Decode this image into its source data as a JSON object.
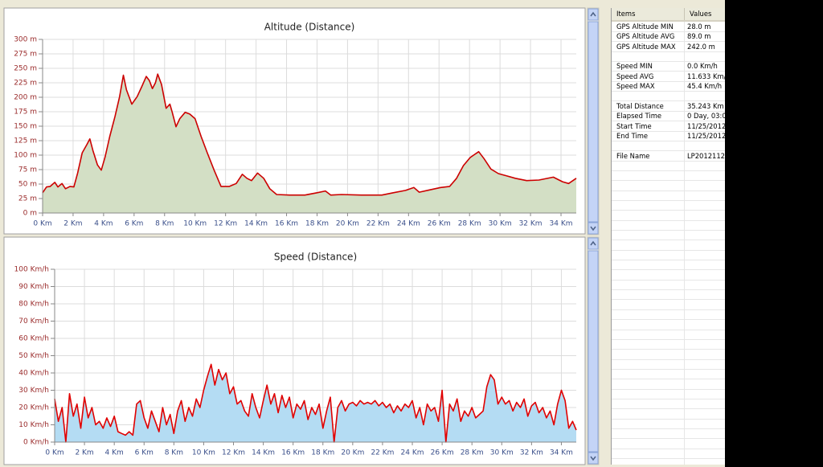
{
  "chart_data": [
    {
      "type": "area",
      "title": "Altitude (Distance)",
      "line_color": "#cc0000",
      "fill_color": "#d3dfc5",
      "grid": true,
      "xlim": [
        0,
        35
      ],
      "ylim": [
        0,
        300
      ],
      "xticks": [
        {
          "value": 0,
          "label": "0 Km"
        },
        {
          "value": 2,
          "label": "2 Km"
        },
        {
          "value": 4,
          "label": "4 Km"
        },
        {
          "value": 6,
          "label": "6 Km"
        },
        {
          "value": 8,
          "label": "8 Km"
        },
        {
          "value": 10,
          "label": "10 Km"
        },
        {
          "value": 12,
          "label": "12 Km"
        },
        {
          "value": 14,
          "label": "14 Km"
        },
        {
          "value": 16,
          "label": "16 Km"
        },
        {
          "value": 18,
          "label": "18 Km"
        },
        {
          "value": 20,
          "label": "20 Km"
        },
        {
          "value": 22,
          "label": "22 Km"
        },
        {
          "value": 24,
          "label": "24 Km"
        },
        {
          "value": 26,
          "label": "26 Km"
        },
        {
          "value": 28,
          "label": "28 Km"
        },
        {
          "value": 30,
          "label": "30 Km"
        },
        {
          "value": 32,
          "label": "32 Km"
        },
        {
          "value": 34,
          "label": "34 Km"
        }
      ],
      "yticks": [
        {
          "value": 0,
          "label": "0 m"
        },
        {
          "value": 25,
          "label": "25 m"
        },
        {
          "value": 50,
          "label": "50 m"
        },
        {
          "value": 75,
          "label": "75 m"
        },
        {
          "value": 100,
          "label": "100 m"
        },
        {
          "value": 125,
          "label": "125 m"
        },
        {
          "value": 150,
          "label": "150 m"
        },
        {
          "value": 175,
          "label": "175 m"
        },
        {
          "value": 200,
          "label": "200 m"
        },
        {
          "value": 225,
          "label": "225 m"
        },
        {
          "value": 250,
          "label": "250 m"
        },
        {
          "value": 275,
          "label": "275 m"
        },
        {
          "value": 300,
          "label": "300 m"
        }
      ],
      "x": [
        0,
        0.26,
        0.5,
        0.8,
        1.0,
        1.27,
        1.5,
        1.8,
        2.05,
        2.3,
        2.6,
        2.9,
        3.1,
        3.3,
        3.6,
        3.85,
        4.1,
        4.4,
        4.75,
        5.05,
        5.3,
        5.5,
        5.85,
        6.2,
        6.5,
        6.8,
        7.0,
        7.2,
        7.4,
        7.55,
        7.8,
        8.1,
        8.35,
        8.5,
        8.75,
        9.0,
        9.35,
        9.65,
        10.0,
        10.4,
        10.8,
        11.25,
        11.7,
        12.25,
        12.7,
        13.1,
        13.4,
        13.7,
        14.1,
        14.5,
        14.9,
        15.35,
        16.2,
        17.2,
        18.0,
        18.55,
        18.9,
        19.6,
        20.9,
        22.25,
        23.0,
        23.8,
        24.35,
        24.7,
        25.4,
        26.1,
        26.7,
        27.15,
        27.6,
        28.05,
        28.6,
        28.95,
        29.4,
        29.9,
        30.45,
        31.0,
        31.75,
        32.55,
        33.5,
        34.1,
        34.5,
        35.0
      ],
      "values": [
        35,
        45,
        46,
        53,
        45,
        51,
        42,
        46,
        45,
        69,
        104,
        118,
        128,
        108,
        83,
        74,
        97,
        132,
        167,
        201,
        238,
        213,
        188,
        201,
        218,
        236,
        229,
        215,
        225,
        240,
        222,
        181,
        188,
        174,
        149,
        163,
        174,
        171,
        163,
        132,
        104,
        74,
        46,
        46,
        51,
        67,
        60,
        56,
        69,
        60,
        42,
        32,
        31,
        31,
        35,
        38,
        31,
        32,
        31,
        31,
        35,
        39,
        44,
        36,
        40,
        44,
        46,
        60,
        82,
        96,
        106,
        94,
        76,
        68,
        64,
        60,
        56,
        57,
        62,
        54,
        51,
        60
      ]
    },
    {
      "type": "area",
      "title": "Speed (Distance)",
      "line_color": "#e00000",
      "fill_color": "#b4dcf3",
      "grid": true,
      "xlim": [
        0,
        35
      ],
      "ylim": [
        0,
        100
      ],
      "xticks": [
        {
          "value": 0,
          "label": "0 Km"
        },
        {
          "value": 2,
          "label": "2 Km"
        },
        {
          "value": 4,
          "label": "4 Km"
        },
        {
          "value": 6,
          "label": "6 Km"
        },
        {
          "value": 8,
          "label": "8 Km"
        },
        {
          "value": 10,
          "label": "10 Km"
        },
        {
          "value": 12,
          "label": "12 Km"
        },
        {
          "value": 14,
          "label": "14 Km"
        },
        {
          "value": 16,
          "label": "16 Km"
        },
        {
          "value": 18,
          "label": "18 Km"
        },
        {
          "value": 20,
          "label": "20 Km"
        },
        {
          "value": 22,
          "label": "22 Km"
        },
        {
          "value": 24,
          "label": "24 Km"
        },
        {
          "value": 26,
          "label": "26 Km"
        },
        {
          "value": 28,
          "label": "28 Km"
        },
        {
          "value": 30,
          "label": "30 Km"
        },
        {
          "value": 32,
          "label": "32 Km"
        },
        {
          "value": 34,
          "label": "34 Km"
        }
      ],
      "yticks": [
        {
          "value": 0,
          "label": "0 Km/h"
        },
        {
          "value": 10,
          "label": "10 Km/h"
        },
        {
          "value": 20,
          "label": "20 Km/h"
        },
        {
          "value": 30,
          "label": "30 Km/h"
        },
        {
          "value": 40,
          "label": "40 Km/h"
        },
        {
          "value": 50,
          "label": "50 Km/h"
        },
        {
          "value": 60,
          "label": "60 Km/h"
        },
        {
          "value": 70,
          "label": "70 Km/h"
        },
        {
          "value": 80,
          "label": "80 Km/h"
        },
        {
          "value": 90,
          "label": "90 Km/h"
        },
        {
          "value": 100,
          "label": "100 Km/h"
        }
      ],
      "x": [
        0,
        0.25,
        0.5,
        0.75,
        1,
        1.25,
        1.5,
        1.75,
        2,
        2.25,
        2.5,
        2.75,
        3,
        3.25,
        3.5,
        3.75,
        4,
        4.25,
        4.5,
        4.75,
        5,
        5.25,
        5.5,
        5.75,
        6,
        6.25,
        6.5,
        6.75,
        7,
        7.25,
        7.5,
        7.75,
        8,
        8.25,
        8.5,
        8.75,
        9,
        9.25,
        9.5,
        9.75,
        10,
        10.25,
        10.5,
        10.75,
        11,
        11.25,
        11.5,
        11.75,
        12,
        12.25,
        12.5,
        12.75,
        13,
        13.25,
        13.5,
        13.75,
        14,
        14.25,
        14.5,
        14.75,
        15,
        15.25,
        15.5,
        15.75,
        16,
        16.25,
        16.5,
        16.75,
        17,
        17.25,
        17.5,
        17.75,
        18,
        18.25,
        18.5,
        18.75,
        19,
        19.25,
        19.5,
        19.75,
        20,
        20.25,
        20.5,
        20.75,
        21,
        21.25,
        21.5,
        21.75,
        22,
        22.25,
        22.5,
        22.75,
        23,
        23.25,
        23.5,
        23.75,
        24,
        24.25,
        24.5,
        24.75,
        25,
        25.25,
        25.5,
        25.75,
        26,
        26.25,
        26.5,
        26.75,
        27,
        27.25,
        27.5,
        27.75,
        28,
        28.25,
        28.5,
        28.75,
        29,
        29.25,
        29.5,
        29.75,
        30,
        30.25,
        30.5,
        30.75,
        31,
        31.25,
        31.5,
        31.75,
        32,
        32.25,
        32.5,
        32.75,
        33,
        33.25,
        33.5,
        33.75,
        34,
        34.25,
        34.5,
        34.75,
        35
      ],
      "values": [
        25,
        12,
        20,
        0,
        28,
        15,
        22,
        8,
        26,
        14,
        20,
        10,
        12,
        8,
        14,
        9,
        15,
        6,
        5,
        4,
        6,
        4,
        22,
        24,
        14,
        8,
        18,
        12,
        6,
        20,
        10,
        16,
        5,
        18,
        24,
        12,
        20,
        15,
        25,
        20,
        30,
        38,
        45,
        33,
        42,
        36,
        40,
        28,
        32,
        22,
        24,
        18,
        15,
        28,
        20,
        14,
        24,
        33,
        22,
        28,
        17,
        27,
        20,
        26,
        14,
        22,
        19,
        24,
        13,
        20,
        16,
        22,
        8,
        18,
        26,
        0,
        20,
        24,
        18,
        22,
        23,
        21,
        24,
        22,
        23,
        22,
        24,
        21,
        23,
        20,
        22,
        17,
        21,
        18,
        22,
        20,
        24,
        14,
        20,
        10,
        22,
        18,
        20,
        12,
        30,
        0,
        22,
        18,
        25,
        12,
        18,
        15,
        20,
        14,
        16,
        18,
        32,
        39,
        36,
        22,
        26,
        22,
        24,
        18,
        23,
        20,
        25,
        15,
        21,
        23,
        17,
        20,
        14,
        18,
        10,
        22,
        30,
        24,
        8,
        12,
        7
      ]
    }
  ],
  "table": {
    "header": [
      "Items",
      "Values"
    ],
    "groups": [
      [
        [
          "GPS Altitude MIN",
          "28.0 m"
        ],
        [
          "GPS Altitude AVG",
          "89.0 m"
        ],
        [
          "GPS Altitude MAX",
          "242.0 m"
        ]
      ],
      [
        [
          "Speed MIN",
          "0.0 Km/h"
        ],
        [
          "Speed AVG",
          "11.633 Km/"
        ],
        [
          "Speed MAX",
          "45.4 Km/h"
        ]
      ],
      [
        [
          "Total Distance",
          "35.243 Km"
        ],
        [
          "Elapsed Time",
          "0 Day, 03:0"
        ],
        [
          "Start Time",
          "11/25/2012"
        ],
        [
          "End Time",
          "11/25/2012"
        ]
      ],
      [
        [
          "File Name",
          "LP2012112"
        ]
      ]
    ]
  }
}
